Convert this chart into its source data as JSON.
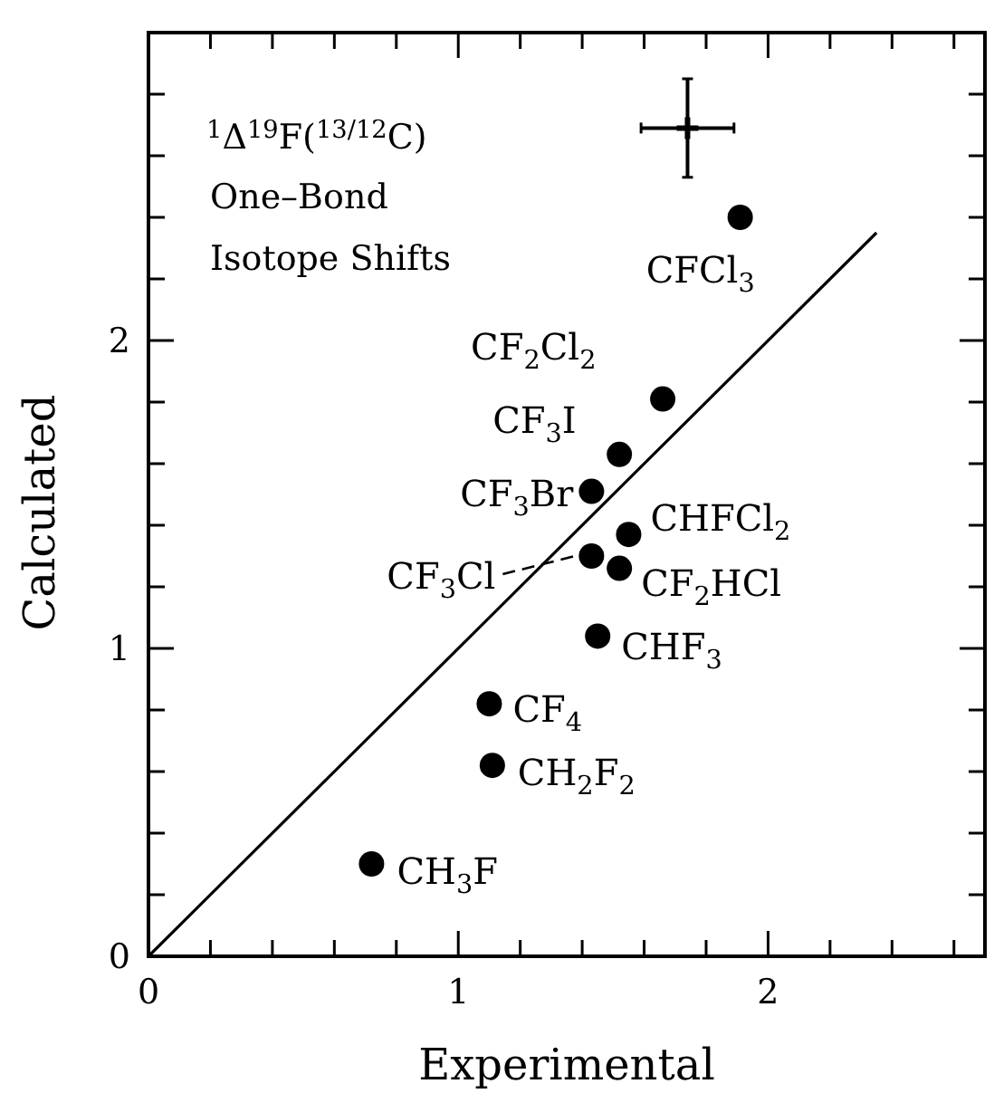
{
  "chart_data": {
    "type": "scatter",
    "title": "$^{1}$Δ$^{19}$F($^{13/12}$C)",
    "subtitle": "One–Bond Isotope Shifts",
    "xlabel": "Experimental",
    "ylabel": "Calculated",
    "xlim": [
      0,
      2.7
    ],
    "ylim": [
      0,
      3.0
    ],
    "xticks": [
      0,
      {
        "value": 0.2,
        "label": null
      },
      {
        "value": 0.4,
        "label": null
      },
      {
        "value": 0.6,
        "label": null
      },
      {
        "value": 0.8,
        "label": null
      },
      1,
      {
        "value": 1.2,
        "label": null
      },
      {
        "value": 1.4,
        "label": null
      },
      {
        "value": 1.6,
        "label": null
      },
      {
        "value": 1.8,
        "label": null
      },
      2,
      {
        "value": 2.2,
        "label": null
      },
      {
        "value": 2.4,
        "label": null
      },
      {
        "value": 2.6,
        "label": null
      }
    ],
    "yticks": [
      0,
      {
        "value": 0.2,
        "label": null
      },
      {
        "value": 0.4,
        "label": null
      },
      {
        "value": 0.6,
        "label": null
      },
      {
        "value": 0.8,
        "label": null
      },
      1,
      {
        "value": 1.2,
        "label": null
      },
      {
        "value": 1.4,
        "label": null
      },
      {
        "value": 1.6,
        "label": null
      },
      {
        "value": 1.8,
        "label": null
      },
      2,
      {
        "value": 2.2,
        "label": null
      },
      {
        "value": 2.4,
        "label": null
      },
      {
        "value": 2.6,
        "label": null
      },
      {
        "value": 2.8,
        "label": null
      }
    ],
    "grid": false,
    "series": [
      {
        "marker": "circle",
        "color": "#000000",
        "x": [
          1.91,
          1.66,
          1.52,
          1.43,
          1.55,
          1.43,
          1.52,
          1.45,
          1.1,
          1.11,
          0.72
        ],
        "values": [
          2.4,
          1.81,
          1.63,
          1.51,
          1.37,
          1.3,
          1.26,
          1.04,
          0.82,
          0.62,
          0.3
        ]
      },
      {
        "type": "line",
        "marker": "none",
        "line_style": "solid",
        "color": "#000000",
        "x": [
          0,
          2.35
        ],
        "values": [
          0,
          2.35
        ]
      },
      {
        "marker": "cross",
        "color": "#000000",
        "x": [
          1.74
        ],
        "values": [
          2.69
        ],
        "errors": [
          0.16
        ],
        "xerrors": [
          0.15
        ]
      }
    ],
    "annotations": [
      {
        "text": "CFCl$_{3}$",
        "x": 1.91,
        "y": 2.4
      },
      {
        "text": "CF$_{2}$Cl$_{2}$",
        "x": 1.66,
        "y": 1.81
      },
      {
        "text": "CF$_{3}$I",
        "x": 1.52,
        "y": 1.63
      },
      {
        "text": "CF$_{3}$Br",
        "x": 1.43,
        "y": 1.51
      },
      {
        "text": "CHFCl$_{2}$",
        "x": 1.55,
        "y": 1.37
      },
      {
        "text": "CF$_{3}$Cl",
        "x": 1.43,
        "y": 1.3
      },
      {
        "text": "CF$_{2}$HCl",
        "x": 1.52,
        "y": 1.26
      },
      {
        "text": "CHF$_{3}$",
        "x": 1.45,
        "y": 1.04
      },
      {
        "text": "CF$_{4}$",
        "x": 1.1,
        "y": 0.82
      },
      {
        "text": "CH$_{2}$F$_{2}$",
        "x": 1.11,
        "y": 0.62
      },
      {
        "text": "CH$_{3}$F",
        "x": 0.72,
        "y": 0.3
      }
    ]
  }
}
